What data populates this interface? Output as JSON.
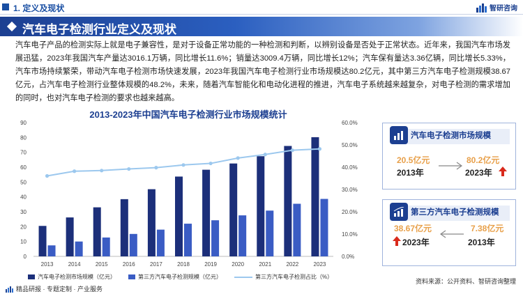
{
  "header": {
    "section_label": "1. 定义及现状",
    "logo_text": "智研咨询"
  },
  "banner": {
    "title": "汽车电子检测行业定义及现状"
  },
  "paragraph": "汽车电子产品的检测实际上就是电子兼容性，是对于设备正常功能的一种检测和判断，以辨别设备是否处于正常状态。近年来，我国汽车市场发展迅猛，2023年我国汽车产量达3016.1万辆，同比增长11.6%；销量达3009.4万辆，同比增长12%；汽车保有量达3.36亿辆，同比增长5.33%，汽车市场持续繁荣，带动汽车电子检测市场快速发展，2023年我国汽车电子检测行业市场规模达80.2亿元，其中第三方汽车电子检测规模38.67亿元，占汽车电子检测行业整体规模的48.2%，未来，随着汽车智能化和电动化进程的推进，汽车电子系统越来越复杂，对电子检测的需求增加的同时，也对汽车电子检测的要求也越来越高。",
  "chart_data": {
    "type": "bar",
    "title": "2013-2023年中国汽车电子检测行业市场规模统计",
    "categories": [
      "2013",
      "2014",
      "2015",
      "2016",
      "2017",
      "2018",
      "2019",
      "2020",
      "2021",
      "2022",
      "2023"
    ],
    "series": [
      {
        "name": "汽车电子检测市场规模（亿元）",
        "type": "bar",
        "axis": "left",
        "color": "#1c2f7a",
        "values": [
          20.5,
          26.2,
          33.0,
          38.5,
          45.2,
          53.7,
          58.3,
          62.5,
          67.4,
          74.3,
          80.2
        ]
      },
      {
        "name": "第三方汽车电子检测规模（亿元）",
        "type": "bar",
        "axis": "left",
        "color": "#3a5cc4",
        "values": [
          7.4,
          10.0,
          12.7,
          15.1,
          18.0,
          22.0,
          24.3,
          27.6,
          30.8,
          35.4,
          38.67
        ]
      },
      {
        "name": "第三方汽车电子检测占比（%）",
        "type": "line",
        "axis": "right",
        "color": "#9cc8ee",
        "values": [
          36.1,
          38.2,
          38.5,
          39.2,
          39.8,
          41.0,
          41.7,
          44.1,
          45.7,
          47.6,
          48.2
        ]
      }
    ],
    "y_left": {
      "min": 0,
      "max": 90,
      "ticks": [
        0,
        10,
        20,
        30,
        40,
        50,
        60,
        70,
        80,
        90
      ]
    },
    "y_right": {
      "min": 0,
      "max": 60,
      "ticks": [
        "0.0%",
        "10.0%",
        "20.0%",
        "30.0%",
        "40.0%",
        "50.0%",
        "60.0%"
      ]
    },
    "legend_position": "bottom"
  },
  "panel_market": {
    "title": "汽车电子检测市场规模",
    "start_value": "20.5亿元",
    "start_year": "2013年",
    "end_value": "80.2亿元",
    "end_year": "2023年"
  },
  "panel_third": {
    "title": "第三方汽车电子检测规模",
    "start_value": "38.67亿元",
    "start_year": "2023年",
    "end_value": "7.38亿元",
    "end_year": "2013年"
  },
  "footer": {
    "left_text": "精品研报 · 专题定制 · 产业服务",
    "source": "资料来源：公开资料、智研咨询整理"
  },
  "colors": {
    "primary": "#1c3f91",
    "accent_orange": "#e8a04a",
    "arrow_red": "#d92a1c",
    "line_light": "#9cc8ee"
  }
}
